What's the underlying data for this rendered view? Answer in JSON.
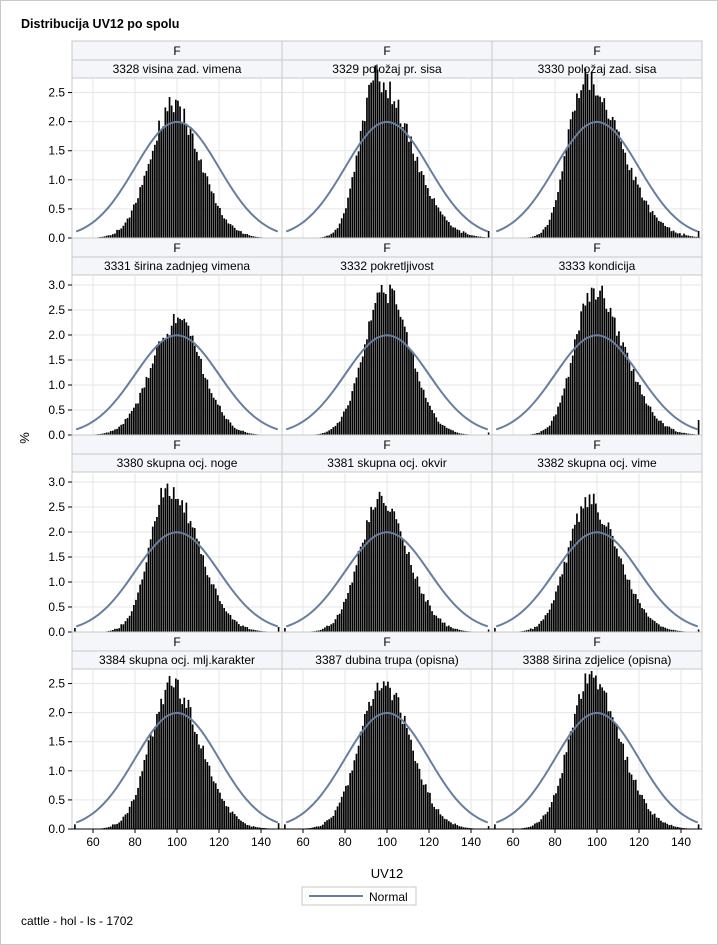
{
  "title": "Distribucija UV12 po spolu",
  "footnote": "cattle - hol - ls - 1702",
  "xlabel": "UV12",
  "ylabel": "%",
  "legend_label": "Normal",
  "colors": {
    "bar": "#000000",
    "normal_curve": "#667f9f",
    "header_bg": "#f4f6fa",
    "grid": "#e6e6e6"
  },
  "chart_data": {
    "type": "bar",
    "layout": "4x3 panel histogram with normal density overlay",
    "x_axis": {
      "range": [
        50,
        150
      ],
      "ticks": [
        60,
        80,
        100,
        120,
        140
      ],
      "label": "UV12"
    },
    "normal": {
      "mean": 100,
      "sd": 20
    },
    "rows": [
      {
        "ylim": [
          0,
          2.75
        ],
        "yticks": [
          "0.0",
          "0.5",
          "1.0",
          "1.5",
          "2.0",
          "2.5"
        ]
      },
      {
        "ylim": [
          0,
          3.2
        ],
        "yticks": [
          "0.0",
          "0.5",
          "1.0",
          "1.5",
          "2.0",
          "2.5",
          "3.0"
        ]
      },
      {
        "ylim": [
          0,
          3.2
        ],
        "yticks": [
          "0.0",
          "0.5",
          "1.0",
          "1.5",
          "2.0",
          "2.5",
          "3.0"
        ]
      },
      {
        "ylim": [
          0,
          2.75
        ],
        "yticks": [
          "0.0",
          "0.5",
          "1.0",
          "1.5",
          "2.0",
          "2.5"
        ]
      }
    ],
    "panels": [
      {
        "sex": "F",
        "trait": "3328 visina zad. vimena",
        "peak": 2.25,
        "mode": 98,
        "sd_left": 11,
        "sd_right": 13,
        "tail_max": 0.0
      },
      {
        "sex": "F",
        "trait": "3329 položaj pr. sisa",
        "peak": 2.75,
        "mode": 95,
        "sd_left": 8,
        "sd_right": 16,
        "tail_max": 0.12
      },
      {
        "sex": "F",
        "trait": "3330 položaj zad. sisa",
        "peak": 2.75,
        "mode": 94,
        "sd_left": 8,
        "sd_right": 17,
        "tail_max": 0.12
      },
      {
        "sex": "F",
        "trait": "3331 širina zadnjeg vimena",
        "peak": 2.27,
        "mode": 100,
        "sd_left": 12,
        "sd_right": 12,
        "tail_max": 0.0
      },
      {
        "sex": "F",
        "trait": "3332 pokretljivost",
        "peak": 2.9,
        "mode": 99,
        "sd_left": 10,
        "sd_right": 12,
        "tail_max": 0.05
      },
      {
        "sex": "F",
        "trait": "3333 kondicija",
        "peak": 2.9,
        "mode": 98,
        "sd_left": 9,
        "sd_right": 15,
        "tail_max": 0.3
      },
      {
        "sex": "F",
        "trait": "3380 skupna ocj. noge",
        "peak": 2.9,
        "mode": 96,
        "sd_left": 9,
        "sd_right": 14,
        "tail_max": 0.1
      },
      {
        "sex": "F",
        "trait": "3381 skupna ocj. okvir",
        "peak": 2.6,
        "mode": 97,
        "sd_left": 10,
        "sd_right": 13,
        "tail_max": 0.05
      },
      {
        "sex": "F",
        "trait": "3382 skupna ocj. vime",
        "peak": 2.6,
        "mode": 96,
        "sd_left": 10,
        "sd_right": 14,
        "tail_max": 0.05
      },
      {
        "sex": "F",
        "trait": "3384 skupna ocj. mlj.karakter",
        "peak": 2.47,
        "mode": 97,
        "sd_left": 10,
        "sd_right": 14,
        "tail_max": 0.1
      },
      {
        "sex": "F",
        "trait": "3387 dubina trupa (opisna)",
        "peak": 2.5,
        "mode": 98,
        "sd_left": 11,
        "sd_right": 13,
        "tail_max": 0.05
      },
      {
        "sex": "F",
        "trait": "3388 širina zdjelice (opisna)",
        "peak": 2.55,
        "mode": 97,
        "sd_left": 10,
        "sd_right": 14,
        "tail_max": 0.08
      }
    ]
  }
}
